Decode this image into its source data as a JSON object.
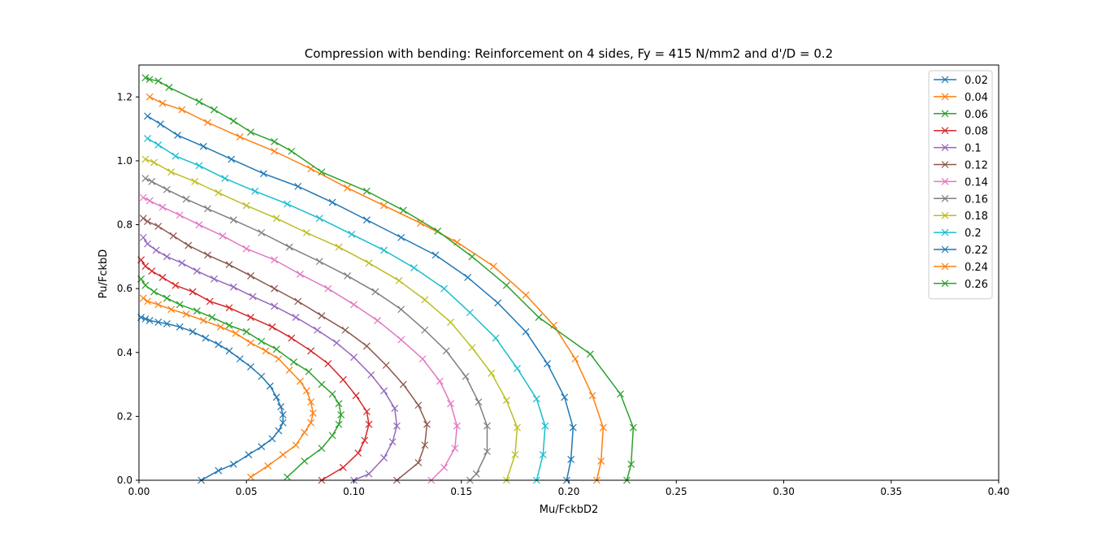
{
  "chart_data": {
    "type": "line",
    "title": "Compression with bending: Reinforcement on 4 sides, Fy = 415 N/mm2 and d'/D = 0.2",
    "xlabel": "Mu/FckbD2",
    "ylabel": "Pu/FckbD",
    "xlim": [
      0,
      0.4
    ],
    "ylim": [
      0,
      1.3
    ],
    "xticks": [
      0,
      0.05,
      0.1,
      0.15,
      0.2,
      0.25,
      0.3,
      0.35,
      0.4
    ],
    "xtick_labels": [
      "0.00",
      "0.05",
      "0.10",
      "0.15",
      "0.20",
      "0.25",
      "0.30",
      "0.35",
      "0.40"
    ],
    "yticks": [
      0,
      0.2,
      0.4,
      0.6,
      0.8,
      1.0,
      1.2
    ],
    "ytick_labels": [
      "0.0",
      "0.2",
      "0.4",
      "0.6",
      "0.8",
      "1.0",
      "1.2"
    ],
    "grid": false,
    "legend_position": "top-right",
    "marker": "x",
    "series": [
      {
        "name": "0.02",
        "color": "#1f77b4",
        "x": [
          0.029,
          0.037,
          0.044,
          0.051,
          0.057,
          0.062,
          0.065,
          0.067,
          0.067,
          0.066,
          0.064,
          0.061,
          0.057,
          0.052,
          0.047,
          0.042,
          0.037,
          0.031,
          0.025,
          0.019,
          0.013,
          0.009,
          0.005,
          0.003,
          0.001
        ],
        "y": [
          0.0,
          0.03,
          0.05,
          0.08,
          0.105,
          0.13,
          0.155,
          0.18,
          0.205,
          0.23,
          0.26,
          0.295,
          0.325,
          0.355,
          0.38,
          0.405,
          0.425,
          0.445,
          0.465,
          0.48,
          0.49,
          0.495,
          0.5,
          0.505,
          0.51
        ]
      },
      {
        "name": "0.04",
        "color": "#ff7f0e",
        "x": [
          0.052,
          0.06,
          0.067,
          0.073,
          0.077,
          0.08,
          0.081,
          0.08,
          0.078,
          0.075,
          0.07,
          0.065,
          0.059,
          0.052,
          0.045,
          0.038,
          0.03,
          0.022,
          0.015,
          0.009,
          0.004,
          0.002
        ],
        "y": [
          0.01,
          0.045,
          0.08,
          0.11,
          0.15,
          0.18,
          0.21,
          0.245,
          0.28,
          0.31,
          0.345,
          0.38,
          0.405,
          0.43,
          0.46,
          0.48,
          0.5,
          0.52,
          0.535,
          0.55,
          0.56,
          0.57
        ]
      },
      {
        "name": "0.06",
        "color": "#2ca02c",
        "x": [
          0.069,
          0.077,
          0.085,
          0.09,
          0.093,
          0.094,
          0.093,
          0.09,
          0.085,
          0.079,
          0.072,
          0.064,
          0.057,
          0.05,
          0.042,
          0.034,
          0.027,
          0.019,
          0.013,
          0.007,
          0.003,
          0.001
        ],
        "y": [
          0.01,
          0.06,
          0.1,
          0.14,
          0.175,
          0.205,
          0.24,
          0.27,
          0.3,
          0.34,
          0.37,
          0.41,
          0.435,
          0.465,
          0.485,
          0.51,
          0.53,
          0.55,
          0.57,
          0.59,
          0.61,
          0.63
        ]
      },
      {
        "name": "0.08",
        "color": "#d62728",
        "x": [
          0.085,
          0.095,
          0.102,
          0.105,
          0.107,
          0.106,
          0.101,
          0.095,
          0.088,
          0.08,
          0.071,
          0.062,
          0.052,
          0.042,
          0.033,
          0.025,
          0.017,
          0.011,
          0.006,
          0.003,
          0.001
        ],
        "y": [
          0.0,
          0.04,
          0.085,
          0.125,
          0.175,
          0.215,
          0.265,
          0.315,
          0.365,
          0.405,
          0.445,
          0.48,
          0.51,
          0.54,
          0.56,
          0.59,
          0.61,
          0.635,
          0.655,
          0.67,
          0.69
        ]
      },
      {
        "name": "0.1",
        "color": "#9467bd",
        "x": [
          0.1,
          0.107,
          0.114,
          0.118,
          0.12,
          0.119,
          0.114,
          0.108,
          0.1,
          0.092,
          0.083,
          0.073,
          0.063,
          0.053,
          0.044,
          0.035,
          0.027,
          0.02,
          0.013,
          0.008,
          0.004,
          0.002
        ],
        "y": [
          0.0,
          0.02,
          0.07,
          0.12,
          0.17,
          0.225,
          0.28,
          0.33,
          0.385,
          0.43,
          0.47,
          0.51,
          0.545,
          0.575,
          0.605,
          0.63,
          0.655,
          0.68,
          0.7,
          0.72,
          0.74,
          0.76
        ]
      },
      {
        "name": "0.12",
        "color": "#8c564b",
        "x": [
          0.12,
          0.13,
          0.133,
          0.134,
          0.13,
          0.123,
          0.115,
          0.106,
          0.096,
          0.085,
          0.074,
          0.063,
          0.052,
          0.042,
          0.032,
          0.023,
          0.016,
          0.009,
          0.004,
          0.002
        ],
        "y": [
          0.0,
          0.055,
          0.11,
          0.175,
          0.235,
          0.3,
          0.36,
          0.42,
          0.47,
          0.515,
          0.56,
          0.6,
          0.64,
          0.675,
          0.705,
          0.735,
          0.765,
          0.795,
          0.81,
          0.82
        ]
      },
      {
        "name": "0.14",
        "color": "#e377c2",
        "x": [
          0.136,
          0.142,
          0.147,
          0.148,
          0.145,
          0.14,
          0.132,
          0.122,
          0.111,
          0.1,
          0.088,
          0.075,
          0.063,
          0.05,
          0.039,
          0.028,
          0.019,
          0.011,
          0.005,
          0.002
        ],
        "y": [
          0.0,
          0.04,
          0.1,
          0.17,
          0.24,
          0.31,
          0.38,
          0.44,
          0.5,
          0.55,
          0.6,
          0.645,
          0.69,
          0.725,
          0.765,
          0.8,
          0.83,
          0.855,
          0.875,
          0.885
        ]
      },
      {
        "name": "0.16",
        "color": "#7f7f7f",
        "x": [
          0.154,
          0.157,
          0.162,
          0.162,
          0.158,
          0.152,
          0.143,
          0.133,
          0.122,
          0.11,
          0.097,
          0.084,
          0.07,
          0.057,
          0.044,
          0.032,
          0.022,
          0.013,
          0.006,
          0.003
        ],
        "y": [
          0.0,
          0.02,
          0.09,
          0.17,
          0.245,
          0.325,
          0.405,
          0.47,
          0.535,
          0.59,
          0.64,
          0.685,
          0.73,
          0.775,
          0.815,
          0.85,
          0.88,
          0.91,
          0.935,
          0.945
        ]
      },
      {
        "name": "0.18",
        "color": "#bcbd22",
        "x": [
          0.171,
          0.175,
          0.176,
          0.171,
          0.164,
          0.155,
          0.145,
          0.133,
          0.121,
          0.107,
          0.093,
          0.078,
          0.064,
          0.05,
          0.037,
          0.026,
          0.015,
          0.007,
          0.003
        ],
        "y": [
          0.0,
          0.08,
          0.165,
          0.25,
          0.335,
          0.415,
          0.495,
          0.565,
          0.625,
          0.68,
          0.73,
          0.775,
          0.82,
          0.86,
          0.9,
          0.935,
          0.965,
          0.995,
          1.005
        ]
      },
      {
        "name": "0.2",
        "color": "#17becf",
        "x": [
          0.185,
          0.188,
          0.189,
          0.185,
          0.176,
          0.166,
          0.154,
          0.142,
          0.128,
          0.114,
          0.099,
          0.084,
          0.069,
          0.054,
          0.04,
          0.028,
          0.017,
          0.009,
          0.004
        ],
        "y": [
          0.0,
          0.08,
          0.17,
          0.255,
          0.35,
          0.445,
          0.525,
          0.6,
          0.665,
          0.72,
          0.77,
          0.82,
          0.865,
          0.905,
          0.945,
          0.985,
          1.015,
          1.05,
          1.07
        ]
      },
      {
        "name": "0.22",
        "color": "#1f77b4",
        "x": [
          0.199,
          0.201,
          0.202,
          0.198,
          0.19,
          0.18,
          0.167,
          0.153,
          0.138,
          0.122,
          0.106,
          0.09,
          0.074,
          0.058,
          0.043,
          0.03,
          0.018,
          0.01,
          0.004
        ],
        "y": [
          0.0,
          0.065,
          0.165,
          0.26,
          0.365,
          0.465,
          0.555,
          0.635,
          0.705,
          0.76,
          0.815,
          0.87,
          0.92,
          0.96,
          1.005,
          1.045,
          1.08,
          1.115,
          1.14
        ]
      },
      {
        "name": "0.24",
        "color": "#ff7f0e",
        "x": [
          0.213,
          0.215,
          0.216,
          0.211,
          0.203,
          0.193,
          0.18,
          0.165,
          0.148,
          0.131,
          0.114,
          0.097,
          0.08,
          0.063,
          0.047,
          0.032,
          0.02,
          0.011,
          0.005
        ],
        "y": [
          0.0,
          0.06,
          0.165,
          0.265,
          0.38,
          0.485,
          0.58,
          0.67,
          0.745,
          0.805,
          0.86,
          0.915,
          0.975,
          1.03,
          1.075,
          1.12,
          1.16,
          1.18,
          1.2
        ]
      },
      {
        "name": "0.26",
        "color": "#2ca02c",
        "x": [
          0.227,
          0.229,
          0.23,
          0.224,
          0.21,
          0.186,
          0.171,
          0.155,
          0.139,
          0.123,
          0.106,
          0.085,
          0.071,
          0.063,
          0.052,
          0.044,
          0.035,
          0.028,
          0.014,
          0.009,
          0.005,
          0.003
        ],
        "y": [
          0.0,
          0.05,
          0.165,
          0.27,
          0.395,
          0.51,
          0.61,
          0.7,
          0.78,
          0.845,
          0.905,
          0.965,
          1.03,
          1.06,
          1.09,
          1.125,
          1.16,
          1.185,
          1.23,
          1.25,
          1.255,
          1.26
        ]
      }
    ]
  }
}
